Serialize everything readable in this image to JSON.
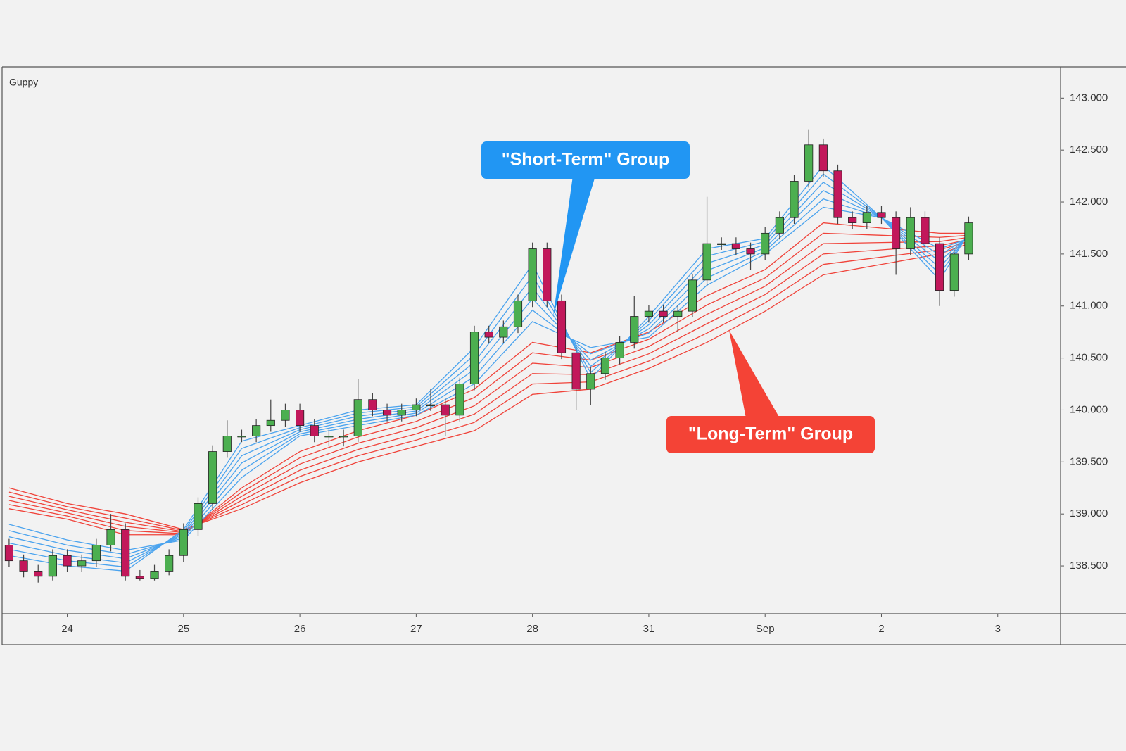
{
  "chart_data": {
    "type": "candlestick",
    "title": "Guppy",
    "annotations": [
      "\"Short-Term\" Group",
      "\"Long-Term\" Group"
    ],
    "up_color": "#4caf50",
    "down_color": "#c2185b",
    "xlim": [
      -0.56,
      8.54
    ],
    "ylim": [
      138.04,
      143.3
    ],
    "xticks": [
      {
        "value": 0,
        "label": "24"
      },
      {
        "value": 1,
        "label": "25"
      },
      {
        "value": 2,
        "label": "26"
      },
      {
        "value": 3,
        "label": "27"
      },
      {
        "value": 4,
        "label": "28"
      },
      {
        "value": 5,
        "label": "31"
      },
      {
        "value": 6,
        "label": "Sep"
      },
      {
        "value": 7,
        "label": "2"
      },
      {
        "value": 8,
        "label": "3"
      }
    ],
    "yticks": [
      {
        "value": 138.5,
        "label": "138.500"
      },
      {
        "value": 139,
        "label": "139.000"
      },
      {
        "value": 139.5,
        "label": "139.500"
      },
      {
        "value": 140,
        "label": "140.000"
      },
      {
        "value": 140.5,
        "label": "140.500"
      },
      {
        "value": 141,
        "label": "141.000"
      },
      {
        "value": 141.5,
        "label": "141.500"
      },
      {
        "value": 142,
        "label": "142.000"
      },
      {
        "value": 142.5,
        "label": "142.500"
      },
      {
        "value": 143,
        "label": "143.000"
      }
    ],
    "x": [
      -0.5,
      -0.375,
      -0.25,
      -0.125,
      0,
      0.125,
      0.25,
      0.375,
      0.5,
      0.625,
      0.75,
      0.875,
      1,
      1.125,
      1.25,
      1.375,
      1.5,
      1.625,
      1.75,
      1.875,
      2,
      2.125,
      2.25,
      2.375,
      2.5,
      2.625,
      2.75,
      2.875,
      3,
      3.125,
      3.25,
      3.375,
      3.5,
      3.625,
      3.75,
      3.875,
      4,
      4.125,
      4.25,
      4.375,
      4.5,
      4.625,
      4.75,
      4.875,
      5,
      5.125,
      5.25,
      5.375,
      5.5,
      5.625,
      5.75,
      5.875,
      6,
      6.125,
      6.25,
      6.375,
      6.5,
      6.625,
      6.75,
      6.875,
      7,
      7.125,
      7.25,
      7.375,
      7.5,
      7.625,
      7.75
    ],
    "open": [
      138.7,
      138.55,
      138.45,
      138.4,
      138.6,
      138.5,
      138.55,
      138.7,
      138.85,
      138.4,
      138.38,
      138.45,
      138.6,
      138.85,
      139.1,
      139.6,
      139.75,
      139.75,
      139.85,
      139.9,
      140.0,
      139.85,
      139.75,
      139.75,
      139.75,
      140.1,
      140.0,
      139.95,
      140.0,
      140.05,
      140.05,
      139.95,
      140.25,
      140.75,
      140.7,
      140.8,
      141.05,
      141.55,
      141.05,
      140.55,
      140.2,
      140.35,
      140.5,
      140.65,
      140.9,
      140.95,
      140.9,
      140.95,
      141.25,
      141.6,
      141.6,
      141.55,
      141.5,
      141.7,
      141.85,
      142.2,
      142.55,
      142.3,
      141.85,
      141.8,
      141.9,
      141.85,
      141.55,
      141.85,
      141.6,
      141.15,
      141.5
    ],
    "high": [
      138.76,
      138.61,
      138.51,
      138.66,
      138.66,
      138.61,
      138.76,
      139.0,
      138.91,
      138.46,
      138.51,
      138.66,
      138.91,
      139.16,
      139.66,
      139.9,
      139.81,
      139.91,
      140.1,
      140.06,
      140.06,
      139.91,
      139.81,
      139.81,
      140.3,
      140.16,
      140.06,
      140.06,
      140.11,
      140.2,
      140.11,
      140.31,
      140.81,
      140.81,
      140.86,
      141.11,
      141.61,
      141.61,
      141.11,
      140.61,
      140.41,
      140.56,
      140.71,
      141.1,
      141.01,
      141.01,
      141.01,
      141.31,
      142.05,
      141.66,
      141.66,
      141.61,
      141.76,
      141.91,
      142.26,
      142.7,
      142.61,
      142.36,
      141.91,
      141.96,
      141.96,
      141.91,
      141.95,
      141.91,
      141.66,
      141.56,
      141.86
    ],
    "low": [
      138.49,
      138.39,
      138.34,
      138.36,
      138.44,
      138.44,
      138.49,
      138.64,
      138.36,
      138.36,
      138.36,
      138.41,
      138.54,
      138.79,
      139.04,
      139.54,
      139.69,
      139.69,
      139.79,
      139.84,
      139.79,
      139.69,
      139.65,
      139.65,
      139.69,
      139.94,
      139.89,
      139.89,
      139.94,
      139.99,
      139.75,
      139.89,
      140.19,
      140.64,
      140.64,
      140.74,
      140.99,
      140.99,
      140.49,
      140.0,
      140.05,
      140.29,
      140.44,
      140.59,
      140.84,
      140.84,
      140.75,
      140.89,
      141.19,
      141.54,
      141.49,
      141.35,
      141.44,
      141.64,
      141.79,
      142.14,
      142.24,
      141.79,
      141.74,
      141.74,
      141.79,
      141.3,
      141.49,
      141.54,
      141.0,
      141.09,
      141.44
    ],
    "close": [
      138.55,
      138.45,
      138.4,
      138.6,
      138.5,
      138.55,
      138.7,
      138.85,
      138.4,
      138.38,
      138.45,
      138.6,
      138.85,
      139.1,
      139.6,
      139.75,
      139.75,
      139.85,
      139.9,
      140.0,
      139.85,
      139.75,
      139.75,
      139.75,
      140.1,
      140.0,
      139.95,
      140.0,
      140.05,
      140.05,
      139.95,
      140.25,
      140.75,
      140.7,
      140.8,
      141.05,
      141.55,
      141.05,
      140.55,
      140.2,
      140.35,
      140.5,
      140.65,
      140.9,
      140.95,
      140.9,
      140.95,
      141.25,
      141.6,
      141.6,
      141.55,
      141.5,
      141.7,
      141.85,
      142.2,
      142.55,
      142.3,
      141.85,
      141.8,
      141.9,
      141.85,
      141.55,
      141.85,
      141.6,
      141.15,
      141.5,
      141.8
    ],
    "lines": {
      "x": [
        -0.5,
        0,
        0.5,
        1,
        1.5,
        2,
        2.5,
        3,
        3.5,
        4,
        4.5,
        5,
        5.5,
        6,
        6.5,
        7,
        7.5,
        7.75
      ],
      "series": [
        {
          "color": "#f0433a",
          "values": [
            139.05,
            138.95,
            138.8,
            138.8,
            139.25,
            139.6,
            139.8,
            139.95,
            140.2,
            140.65,
            140.55,
            140.75,
            141.1,
            141.35,
            141.8,
            141.75,
            141.7,
            141.7
          ]
        },
        {
          "color": "#f0433a",
          "values": [
            139.09,
            138.98,
            138.84,
            138.81,
            139.21,
            139.54,
            139.74,
            139.89,
            140.12,
            140.55,
            140.48,
            140.68,
            141.01,
            141.27,
            141.7,
            141.68,
            141.66,
            141.68
          ]
        },
        {
          "color": "#f0433a",
          "values": [
            139.13,
            139.01,
            138.88,
            138.82,
            139.17,
            139.48,
            139.68,
            139.83,
            140.04,
            140.45,
            140.41,
            140.61,
            140.92,
            141.19,
            141.6,
            141.61,
            141.62,
            141.66
          ]
        },
        {
          "color": "#f0433a",
          "values": [
            139.17,
            139.04,
            138.92,
            138.83,
            139.13,
            139.42,
            139.62,
            139.77,
            139.96,
            140.35,
            140.34,
            140.54,
            140.83,
            141.11,
            141.5,
            141.54,
            141.58,
            141.64
          ]
        },
        {
          "color": "#f0433a",
          "values": [
            139.21,
            139.07,
            138.96,
            138.84,
            139.09,
            139.36,
            139.56,
            139.71,
            139.88,
            140.25,
            140.27,
            140.47,
            140.74,
            141.03,
            141.4,
            141.47,
            141.54,
            141.62
          ]
        },
        {
          "color": "#f0433a",
          "values": [
            139.25,
            139.1,
            139.0,
            138.85,
            139.05,
            139.3,
            139.5,
            139.65,
            139.8,
            140.15,
            140.2,
            140.4,
            140.65,
            140.95,
            141.3,
            141.4,
            141.5,
            141.6
          ]
        },
        {
          "color": "#4aa3ee",
          "values": [
            138.6,
            138.5,
            138.45,
            138.85,
            139.7,
            139.85,
            140.0,
            140.05,
            140.6,
            141.4,
            140.3,
            140.9,
            141.55,
            141.65,
            142.35,
            141.85,
            141.25,
            141.7
          ]
        },
        {
          "color": "#4aa3ee",
          "values": [
            138.66,
            138.55,
            138.49,
            138.83,
            139.63,
            139.83,
            139.97,
            140.03,
            140.53,
            141.29,
            140.36,
            140.86,
            141.48,
            141.62,
            142.27,
            141.85,
            141.31,
            141.69
          ]
        },
        {
          "color": "#4aa3ee",
          "values": [
            138.72,
            138.6,
            138.53,
            138.81,
            139.56,
            139.81,
            139.94,
            140.01,
            140.46,
            141.18,
            140.42,
            140.82,
            141.41,
            141.59,
            142.19,
            141.85,
            141.37,
            141.68
          ]
        },
        {
          "color": "#4aa3ee",
          "values": [
            138.78,
            138.65,
            138.57,
            138.79,
            139.49,
            139.79,
            139.91,
            139.99,
            140.39,
            141.07,
            140.48,
            140.78,
            141.34,
            141.56,
            142.11,
            141.85,
            141.43,
            141.67
          ]
        },
        {
          "color": "#4aa3ee",
          "values": [
            138.84,
            138.7,
            138.61,
            138.77,
            139.42,
            139.77,
            139.88,
            139.97,
            140.32,
            140.96,
            140.54,
            140.74,
            141.27,
            141.53,
            142.03,
            141.85,
            141.49,
            141.66
          ]
        },
        {
          "color": "#4aa3ee",
          "values": [
            138.9,
            138.75,
            138.65,
            138.75,
            139.35,
            139.75,
            139.85,
            139.95,
            140.25,
            140.85,
            140.6,
            140.7,
            141.2,
            141.5,
            141.95,
            141.85,
            141.55,
            141.65
          ]
        }
      ]
    }
  }
}
